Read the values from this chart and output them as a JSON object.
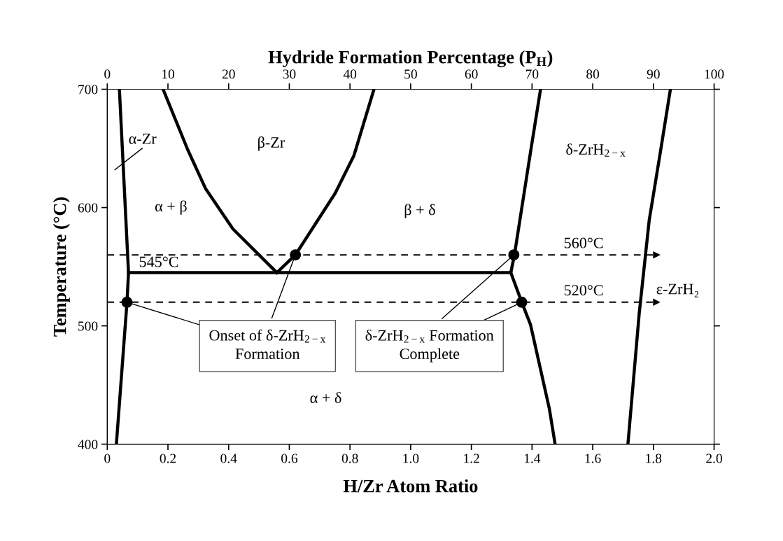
{
  "chart_data": {
    "type": "line",
    "xlabel": "H/Zr Atom Ratio",
    "ylabel": "Temperature (°C)",
    "x2label": "Hydride Formation Percentage (P$_{H}$)",
    "xlim": [
      0,
      2.0
    ],
    "xticks": [
      0,
      {
        "value": 0.2,
        "label": "0.2"
      },
      {
        "value": 0.4,
        "label": "0.4"
      },
      {
        "value": 0.6,
        "label": "0.6"
      },
      {
        "value": 0.8,
        "label": "0.8"
      },
      {
        "value": 1.0,
        "label": "1.0"
      },
      {
        "value": 1.2,
        "label": "1.2"
      },
      {
        "value": 1.4,
        "label": "1.4"
      },
      {
        "value": 1.6,
        "label": "1.6"
      },
      {
        "value": 1.8,
        "label": "1.8"
      },
      {
        "value": 2.0,
        "label": "2.0"
      }
    ],
    "x2lim": [
      0,
      100
    ],
    "x2ticks": [
      0,
      10,
      20,
      30,
      40,
      50,
      60,
      70,
      80,
      90,
      100
    ],
    "ylim": [
      400,
      700
    ],
    "yticks": [
      400,
      500,
      600,
      700
    ],
    "grid": false,
    "marker": "none",
    "line_style": "solid",
    "series": [
      {
        "color": "#000000",
        "x": [
          0.04,
          0.07,
          0.065,
          0.03
        ],
        "values": [
          700,
          545,
          520,
          400
        ]
      },
      {
        "color": "#000000",
        "x": [
          0.184,
          0.265,
          0.324,
          0.414,
          0.559
        ],
        "values": [
          700,
          649,
          616,
          582,
          545
        ]
      },
      {
        "color": "#000000",
        "x": [
          0.559,
          0.62,
          0.751,
          0.813,
          0.879
        ],
        "values": [
          545,
          560,
          612,
          644,
          700
        ]
      },
      {
        "color": "#000000",
        "x": [
          0.07,
          1.33
        ],
        "values": [
          545,
          545
        ]
      },
      {
        "color": "#000000",
        "x": [
          1.428,
          1.395,
          1.342,
          1.33,
          1.366,
          1.395,
          1.457,
          1.476
        ],
        "values": [
          700,
          647,
          560,
          545,
          520,
          501,
          430,
          400
        ]
      },
      {
        "color": "#000000",
        "x": [
          1.856,
          1.823,
          1.786,
          1.753,
          1.716
        ],
        "values": [
          700,
          647,
          589,
          510,
          400
        ]
      },
      {
        "type": "scatter",
        "marker": "circle",
        "color": "#000000",
        "x": [
          0.065,
          0.62,
          1.34,
          1.366
        ],
        "values": [
          520,
          560,
          560,
          520
        ]
      }
    ],
    "ref_lines": [
      {
        "axis": "y",
        "value": 560,
        "label": "560°C",
        "line_style": "dashed",
        "color": "#000000"
      },
      {
        "axis": "y",
        "value": 520,
        "label": "520°C",
        "line_style": "dashed",
        "color": "#000000"
      }
    ],
    "annotations": [
      "α-Zr",
      "β-Zr",
      "α + β",
      "β + δ",
      "δ-ZrH$_{2−x}$",
      "ε-ZrH₂",
      "545°C",
      "α + δ",
      {
        "text": "Onset of δ-ZrH$_{2−x}$\nFormation",
        "x": 0.62,
        "y": 560
      },
      {
        "text": "δ-ZrH$_{2−x}$ Formation\nComplete",
        "x": 1.34,
        "y": 560
      }
    ]
  }
}
